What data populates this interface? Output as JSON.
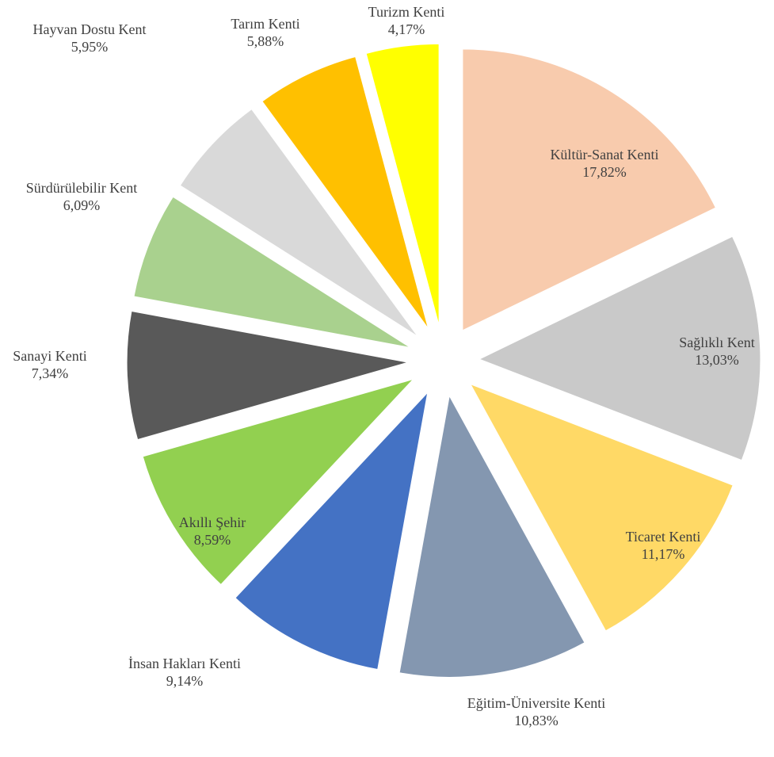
{
  "chart_data": {
    "type": "pie",
    "categories": [
      "Kültür-Sanat Kenti",
      "Sağlıklı Kent",
      "Ticaret Kenti",
      "Eğitim-Üniversite Kenti",
      "İnsan Hakları Kenti",
      "Akıllı Şehir",
      "Sanayi Kenti",
      "Sürdürülebilir Kent",
      "Hayvan Dostu Kent",
      "Tarım Kenti",
      "Turizm Kenti"
    ],
    "values": [
      17.82,
      13.03,
      11.17,
      10.83,
      9.14,
      8.59,
      7.34,
      6.09,
      5.95,
      5.88,
      4.17
    ],
    "value_labels": [
      "17,82%",
      "13,03%",
      "11,17%",
      "10,83%",
      "9,14%",
      "8,59%",
      "7,34%",
      "6,09%",
      "5,95%",
      "5,88%",
      "4,17%"
    ],
    "colors": [
      "#f8cbad",
      "#c9c9c9",
      "#ffd966",
      "#8497b0",
      "#4472c4",
      "#92d050",
      "#595959",
      "#a9d18e",
      "#d9d9d9",
      "#ffc000",
      "#ffff00"
    ]
  }
}
